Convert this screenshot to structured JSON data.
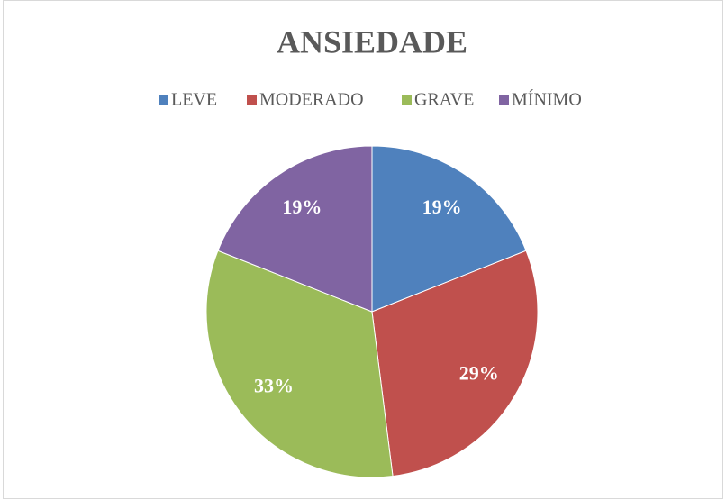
{
  "chart_data": {
    "type": "pie",
    "title": "ANSIEDADE",
    "categories": [
      "LEVE",
      "MODERADO",
      "GRAVE",
      "MÍNIMO"
    ],
    "values": [
      19,
      29,
      33,
      19
    ],
    "value_labels": [
      "19%",
      "29%",
      "33%",
      "19%"
    ],
    "colors": [
      "#4f81bd",
      "#c0504d",
      "#9bbb59",
      "#8064a2"
    ],
    "legend": "top"
  }
}
